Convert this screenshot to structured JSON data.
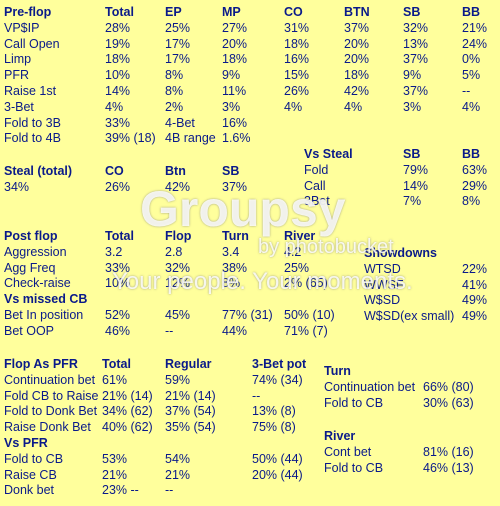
{
  "preflop": {
    "header": [
      "Pre-flop",
      "Total",
      "EP",
      "MP",
      "CO",
      "BTN",
      "SB",
      "BB"
    ],
    "rows": [
      [
        "VP$IP",
        "28%",
        "25%",
        "27%",
        "31%",
        "37%",
        "32%",
        "21%"
      ],
      [
        "Call Open",
        "19%",
        "17%",
        "20%",
        "18%",
        "20%",
        "13%",
        "24%"
      ],
      [
        "Limp",
        "18%",
        "17%",
        "18%",
        "16%",
        "20%",
        "37%",
        "0%"
      ],
      [
        "PFR",
        "10%",
        "8%",
        "9%",
        "15%",
        "18%",
        "9%",
        "5%"
      ],
      [
        "Raise 1st",
        "14%",
        "8%",
        "11%",
        "26%",
        "42%",
        "37%",
        "--"
      ],
      [
        "3-Bet",
        "4%",
        "2%",
        "3%",
        "4%",
        "4%",
        "3%",
        "4%"
      ],
      [
        "Fold to 3B",
        "33%",
        "4-Bet",
        "16%"
      ],
      [
        "Fold to 4B",
        "39% (18)",
        "4B range",
        "1.6%"
      ]
    ]
  },
  "steal_total": {
    "header": [
      "Steal (total)",
      "CO",
      "Btn",
      "SB"
    ],
    "rows": [
      [
        "34%",
        "26%",
        "42%",
        "37%"
      ]
    ]
  },
  "vs_steal": {
    "header": [
      "Vs Steal",
      "SB",
      "BB"
    ],
    "rows": [
      [
        "Fold",
        "79%",
        "63%"
      ],
      [
        "Call",
        "14%",
        "29%"
      ],
      [
        "3Bet",
        "7%",
        "8%"
      ]
    ]
  },
  "postflop": {
    "header": [
      "Post flop",
      "Total",
      "Flop",
      "Turn",
      "River"
    ],
    "rows": [
      [
        "Aggression",
        "3.2",
        "2.8",
        "3.4",
        "4.2"
      ],
      [
        "Agg Freq",
        "33%",
        "32%",
        "38%",
        "25%"
      ],
      [
        "Check-raise",
        "10%",
        "12%",
        "8%",
        "2% (65)"
      ]
    ],
    "subheader": "Vs missed CB",
    "subrows": [
      [
        "Bet In position",
        "52%",
        "45%",
        "77% (31)",
        "50% (10)"
      ],
      [
        "Bet OOP",
        "46%",
        "--",
        "44%",
        "71% (7)"
      ]
    ]
  },
  "showdowns": {
    "header": [
      "Showdowns"
    ],
    "rows": [
      [
        "WTSD",
        "22%"
      ],
      [
        "WWSF",
        "41%"
      ],
      [
        "W$SD",
        "49%"
      ],
      [
        "W$SD(ex small)",
        "49%"
      ]
    ]
  },
  "flop_as_pfr": {
    "header": [
      "Flop As PFR",
      "Total",
      "Regular",
      "3-Bet pot"
    ],
    "rows": [
      [
        "Continuation bet",
        "61%",
        "59%",
        "74% (34)"
      ],
      [
        "Fold CB to Raise",
        "21% (14)",
        "21% (14)",
        "--"
      ],
      [
        "Fold to Donk Bet",
        "34% (62)",
        "37% (54)",
        "13% (8)"
      ],
      [
        "Raise Donk Bet",
        "40% (62)",
        "35% (54)",
        "75% (8)"
      ]
    ],
    "subheader": "Vs PFR",
    "subrows": [
      [
        "Fold to CB",
        "53%",
        "54%",
        "50% (44)"
      ],
      [
        "Raise CB",
        "21%",
        "21%",
        "20% (44)"
      ],
      [
        "Donk bet",
        "23% --",
        "--"
      ]
    ]
  },
  "turn": {
    "header": [
      "Turn"
    ],
    "rows": [
      [
        "Continuation bet",
        "66% (80)"
      ],
      [
        "Fold to CB",
        "30% (63)"
      ]
    ]
  },
  "river": {
    "header": [
      "River"
    ],
    "rows": [
      [
        "Cont bet",
        "81% (16)"
      ],
      [
        "Fold to CB",
        "46% (13)"
      ]
    ]
  },
  "watermark": {
    "logo": "Groupsy",
    "byline": "by photobucket",
    "tagline": "Your people. Your moments."
  }
}
